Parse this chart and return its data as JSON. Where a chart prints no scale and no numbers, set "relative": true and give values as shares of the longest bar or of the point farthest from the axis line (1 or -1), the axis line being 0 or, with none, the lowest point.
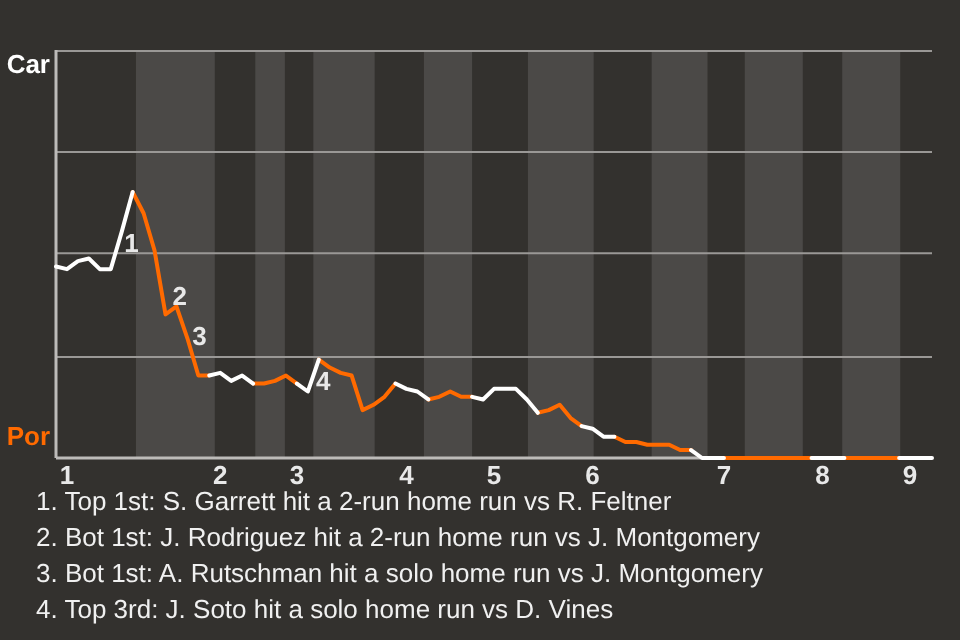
{
  "chart_data": {
    "type": "line",
    "relative": true,
    "categories": [
      null,
      "1",
      null,
      null,
      null,
      null,
      null,
      null,
      null,
      null,
      null,
      null,
      null,
      null,
      null,
      "2",
      null,
      null,
      null,
      null,
      null,
      null,
      "3",
      null,
      null,
      null,
      null,
      null,
      null,
      null,
      null,
      null,
      "4",
      null,
      null,
      null,
      null,
      null,
      null,
      null,
      "5",
      null,
      null,
      null,
      null,
      null,
      null,
      null,
      null,
      "6",
      null,
      null,
      null,
      null,
      null,
      null,
      null,
      null,
      null,
      null,
      null,
      "7",
      null,
      null,
      null,
      null,
      null,
      null,
      null,
      null,
      "8",
      null,
      null,
      null,
      null,
      null,
      null,
      null,
      "9",
      null,
      null
    ],
    "marker": "none",
    "line_style": "solid",
    "ref_lines": [
      {
        "axis": "y",
        "value": 0.38,
        "color": "#9a9896"
      },
      {
        "axis": "y",
        "value": 0.77,
        "color": "#9a9896"
      },
      {
        "axis": "y",
        "value": 1.15,
        "color": "#9a9896"
      },
      {
        "axis": "y",
        "value": 1.53,
        "color": "#9a9896"
      }
    ],
    "series": [
      {
        "color": "#ffffff",
        "values": [
          0.72,
          0.71,
          0.74,
          0.75,
          0.71,
          0.71,
          0.85,
          1,
          null,
          null,
          null,
          null,
          null,
          null,
          0.31,
          0.32,
          0.29,
          0.31,
          0.28,
          null,
          null,
          null,
          0.28,
          0.25,
          0.37,
          null,
          null,
          null,
          null,
          null,
          null,
          0.28,
          0.26,
          0.25,
          0.22,
          null,
          null,
          null,
          0.23,
          0.22,
          0.26,
          0.26,
          0.26,
          0.22,
          0.17,
          null,
          null,
          null,
          0.12,
          0.11,
          0.08,
          0.08,
          null,
          null,
          null,
          null,
          null,
          null,
          0.03,
          0,
          0,
          0,
          null,
          null,
          null,
          null,
          null,
          null,
          null,
          0,
          0,
          0,
          0,
          null,
          null,
          null,
          null,
          0,
          0,
          0,
          0
        ]
      },
      {
        "color": "#ff6a00",
        "values": [
          null,
          null,
          null,
          null,
          null,
          null,
          null,
          1,
          0.92,
          0.78,
          0.54,
          0.57,
          0.45,
          0.31,
          0.31,
          null,
          null,
          null,
          0.28,
          0.28,
          0.29,
          0.31,
          0.28,
          null,
          0.37,
          0.34,
          0.32,
          0.31,
          0.18,
          0.2,
          0.23,
          0.28,
          null,
          null,
          0.22,
          0.23,
          0.25,
          0.23,
          0.23,
          null,
          null,
          null,
          null,
          null,
          0.17,
          0.18,
          0.2,
          0.15,
          0.12,
          null,
          null,
          0.08,
          0.06,
          0.06,
          0.05,
          0.05,
          0.05,
          0.03,
          0.03,
          null,
          null,
          0,
          0,
          0,
          0,
          0,
          0,
          0,
          0,
          0,
          null,
          null,
          0,
          0,
          0,
          0,
          0,
          0,
          null,
          null,
          null
        ]
      }
    ],
    "annotations": [
      "Car",
      "Por",
      "1",
      "2",
      "3",
      "4",
      "1. Top 1st: S. Garrett hit a 2-run home run vs R. Feltner",
      "2. Bot 1st: J. Rodriguez hit a 2-run home run vs J. Montgomery",
      "3. Bot 1st: A. Rutschman hit a solo home run vs J. Montgomery",
      "4. Top 3rd: J. Soto hit a solo home run vs D. Vines"
    ]
  }
}
